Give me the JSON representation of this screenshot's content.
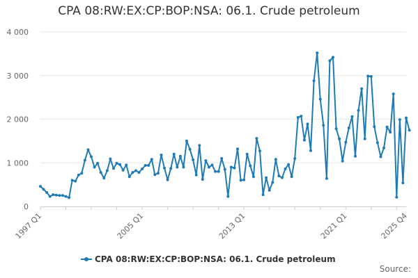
{
  "title": "CPA 08:RW:EX:CP:BOP:NSA: 06.1. Crude petroleum",
  "source_label": "Source:",
  "colors": {
    "series": "#1f7bb6",
    "grid": "#e6e6e6",
    "axis": "#cccccc"
  },
  "chart_data": {
    "type": "line",
    "title": "CPA 08:RW:EX:CP:BOP:NSA: 06.1. Crude petroleum",
    "xlabel": "",
    "ylabel": "",
    "x_start": "1997 Q1",
    "x_end": "2025 Q4",
    "x_ticks": [
      "1997 Q1",
      "2005 Q1",
      "2013 Q1",
      "2021 Q1",
      "2025 Q4"
    ],
    "y_ticks": [
      "0",
      "1 000",
      "2 000",
      "3 000",
      "4 000"
    ],
    "ylim": [
      0,
      4000
    ],
    "grid": true,
    "legend": "bottom-center",
    "series": [
      {
        "name": "CPA 08:RW:EX:CP:BOP:NSA: 06.1. Crude petroleum",
        "values": [
          460,
          390,
          320,
          230,
          270,
          260,
          250,
          250,
          230,
          200,
          600,
          580,
          720,
          760,
          1060,
          1300,
          1140,
          900,
          990,
          780,
          650,
          820,
          1090,
          870,
          990,
          960,
          830,
          950,
          680,
          780,
          820,
          780,
          860,
          940,
          940,
          1080,
          730,
          760,
          1180,
          880,
          610,
          870,
          1200,
          900,
          1150,
          900,
          1500,
          1310,
          1070,
          720,
          1400,
          620,
          1050,
          900,
          950,
          800,
          800,
          1100,
          850,
          230,
          900,
          880,
          1320,
          600,
          610,
          1200,
          930,
          680,
          1560,
          1270,
          270,
          660,
          370,
          550,
          1080,
          700,
          660,
          860,
          960,
          680,
          1100,
          2040,
          2070,
          1520,
          1890,
          1280,
          2880,
          3520,
          2460,
          1860,
          640,
          3340,
          3420,
          1780,
          1550,
          1040,
          1470,
          1800,
          2060,
          1150,
          2200,
          2700,
          1550,
          2990,
          2980,
          1830,
          1460,
          1140,
          1340,
          1820,
          1700,
          2580,
          210,
          1990,
          540,
          2030,
          1750
        ]
      }
    ]
  }
}
